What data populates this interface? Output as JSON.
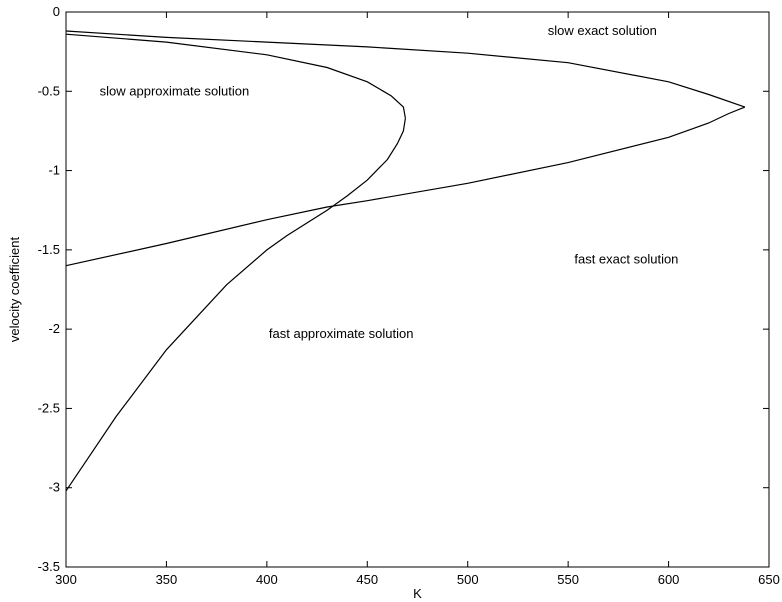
{
  "chart_data": {
    "type": "line",
    "title": "",
    "xlabel": "K",
    "ylabel": "velocity coefficient",
    "xlim": [
      300,
      650
    ],
    "ylim": [
      -3.5,
      0
    ],
    "grid": false,
    "xticks": [
      300,
      350,
      400,
      450,
      500,
      550,
      600,
      650
    ],
    "xtick_labels": [
      "300",
      "350",
      "400",
      "450",
      "500",
      "550",
      "600",
      "650"
    ],
    "yticks": [
      0,
      -0.5,
      -1,
      -1.5,
      -2,
      -2.5,
      -3,
      -3.5
    ],
    "ytick_labels": [
      "0",
      "-0.5",
      "-1",
      "-1.5",
      "-2",
      "-2.5",
      "-3",
      "-3.5"
    ],
    "series": [
      {
        "x": [
          300,
          350,
          400,
          450,
          500,
          550,
          600,
          620,
          638
        ],
        "y": [
          -0.12,
          -0.16,
          -0.19,
          -0.22,
          -0.26,
          -0.32,
          -0.44,
          -0.52,
          -0.6
        ]
      },
      {
        "x": [
          638,
          630,
          620,
          600,
          550,
          500,
          450,
          430,
          400,
          350,
          300
        ],
        "y": [
          -0.6,
          -0.64,
          -0.7,
          -0.79,
          -0.95,
          -1.08,
          -1.19,
          -1.23,
          -1.31,
          -1.46,
          -1.6
        ]
      },
      {
        "x": [
          300,
          350,
          400,
          430,
          450,
          462,
          468,
          469
        ],
        "y": [
          -0.14,
          -0.19,
          -0.27,
          -0.35,
          -0.44,
          -0.53,
          -0.6,
          -0.67
        ]
      },
      {
        "x": [
          469,
          468,
          465,
          460,
          450,
          440,
          430,
          410,
          400,
          380,
          350,
          325,
          300
        ],
        "y": [
          -0.67,
          -0.75,
          -0.83,
          -0.93,
          -1.06,
          -1.16,
          -1.25,
          -1.41,
          -1.5,
          -1.72,
          -2.13,
          -2.55,
          -3.02
        ]
      }
    ],
    "annotations": [
      {
        "text": "slow exact solution",
        "x": 567,
        "y": -0.12
      },
      {
        "text": "slow approximate solution",
        "x": 354,
        "y": -0.5
      },
      {
        "text": "fast exact solution",
        "x": 579,
        "y": -1.56
      },
      {
        "text": "fast approximate solution",
        "x": 437,
        "y": -2.03
      }
    ]
  }
}
